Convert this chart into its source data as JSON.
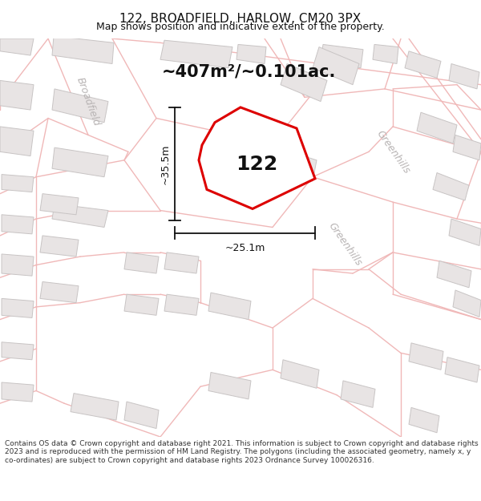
{
  "title": "122, BROADFIELD, HARLOW, CM20 3PX",
  "subtitle": "Map shows position and indicative extent of the property.",
  "area_text": "~407m²/~0.101ac.",
  "property_number": "122",
  "dim_vertical": "~35.5m",
  "dim_horizontal": "~25.1m",
  "copyright_text": "Contains OS data © Crown copyright and database right 2021. This information is subject to Crown copyright and database rights 2023 and is reproduced with the permission of HM Land Registry. The polygons (including the associated geometry, namely x, y co-ordinates) are subject to Crown copyright and database rights 2023 Ordnance Survey 100026316.",
  "bg_color": "#ffffff",
  "map_bg": "#ffffff",
  "road_color": "#f0b8b8",
  "road_lw": 1.0,
  "building_fc": "#e8e4e4",
  "building_ec": "#c8c4c4",
  "property_color": "#dd0000",
  "property_lw": 2.2,
  "dim_color": "#111111",
  "street_label_color": "#b8b4b4",
  "label_street1": "Broadfield",
  "label_street2": "Greenhills",
  "title_fontsize": 11,
  "subtitle_fontsize": 9,
  "area_fontsize": 15,
  "dim_fontsize": 9,
  "prop_label_fontsize": 18,
  "street_fontsize": 9,
  "copyright_fontsize": 6.5
}
